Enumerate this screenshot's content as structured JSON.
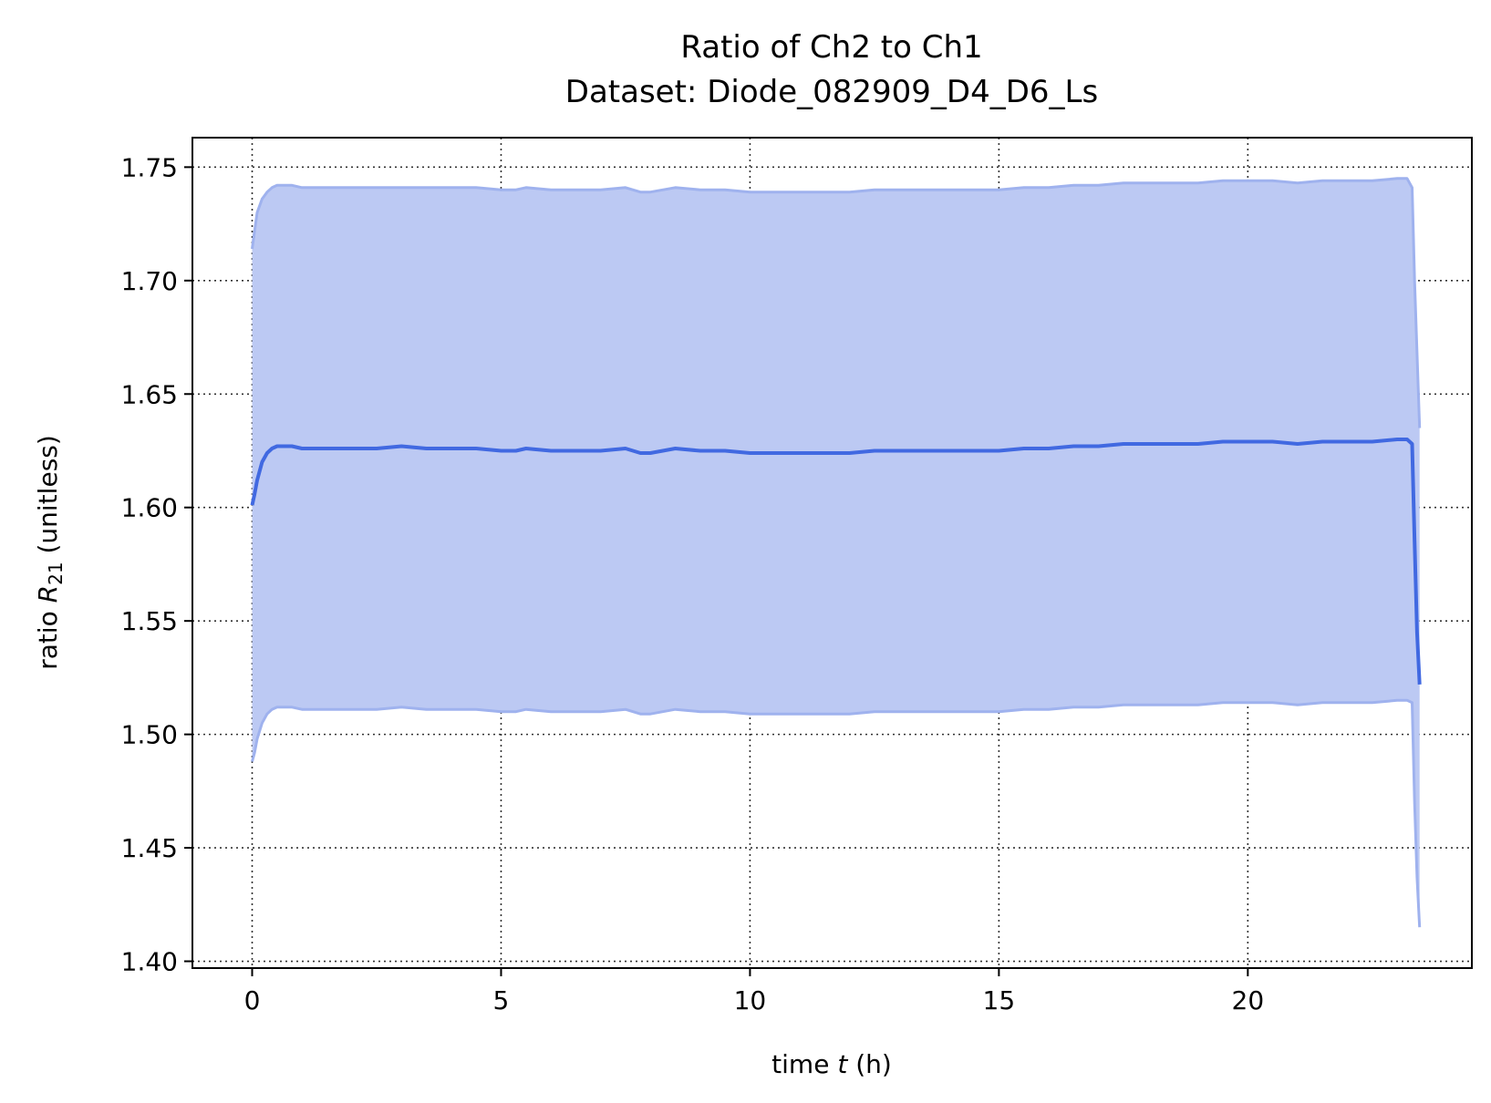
{
  "chart_data": {
    "type": "line",
    "title": "Ratio of Ch2 to Ch1",
    "subtitle": "Dataset: Diode_082909_D4_D6_Ls",
    "xlabel": {
      "pre": "time ",
      "var": "t",
      "post": " (h)"
    },
    "ylabel": {
      "pre": "ratio ",
      "var": "R",
      "sub": "21",
      "post": " (unitless)"
    },
    "xlim": [
      -1.2,
      24.5
    ],
    "ylim": [
      1.397,
      1.763
    ],
    "xticks": [
      0,
      5,
      10,
      15,
      20
    ],
    "xtick_labels": [
      "0",
      "5",
      "10",
      "15",
      "20"
    ],
    "yticks": [
      1.4,
      1.45,
      1.5,
      1.55,
      1.6,
      1.65,
      1.7,
      1.75
    ],
    "ytick_labels": [
      "1.40",
      "1.45",
      "1.50",
      "1.55",
      "1.60",
      "1.65",
      "1.70",
      "1.75"
    ],
    "grid": true,
    "colors": {
      "line": "#4169e1",
      "band": "#bcc9f3",
      "band_edge": "#9fb2ee",
      "grid": "#333333"
    },
    "series": [
      {
        "role": "mean",
        "x": [
          0,
          0.05,
          0.1,
          0.2,
          0.3,
          0.4,
          0.5,
          0.6,
          0.8,
          1.0,
          1.5,
          2.0,
          2.5,
          3.0,
          3.5,
          4.0,
          4.5,
          5.0,
          5.3,
          5.5,
          6.0,
          6.5,
          7.0,
          7.5,
          7.8,
          8.0,
          8.5,
          9.0,
          9.5,
          10.0,
          10.5,
          11.0,
          11.5,
          12.0,
          12.5,
          13.0,
          13.5,
          14.0,
          14.5,
          15.0,
          15.5,
          16.0,
          16.5,
          17.0,
          17.5,
          18.0,
          18.5,
          19.0,
          19.5,
          20.0,
          20.5,
          21.0,
          21.5,
          22.0,
          22.5,
          23.0,
          23.2,
          23.3,
          23.35,
          23.4,
          23.45
        ],
        "y": [
          1.601,
          1.606,
          1.612,
          1.62,
          1.624,
          1.626,
          1.627,
          1.627,
          1.627,
          1.626,
          1.626,
          1.626,
          1.626,
          1.627,
          1.626,
          1.626,
          1.626,
          1.625,
          1.625,
          1.626,
          1.625,
          1.625,
          1.625,
          1.626,
          1.624,
          1.624,
          1.626,
          1.625,
          1.625,
          1.624,
          1.624,
          1.624,
          1.624,
          1.624,
          1.625,
          1.625,
          1.625,
          1.625,
          1.625,
          1.625,
          1.626,
          1.626,
          1.627,
          1.627,
          1.628,
          1.628,
          1.628,
          1.628,
          1.629,
          1.629,
          1.629,
          1.628,
          1.629,
          1.629,
          1.629,
          1.63,
          1.63,
          1.628,
          1.585,
          1.545,
          1.522
        ]
      },
      {
        "role": "upper",
        "x": [
          0,
          0.05,
          0.1,
          0.2,
          0.3,
          0.4,
          0.5,
          0.6,
          0.8,
          1.0,
          1.5,
          2.0,
          2.5,
          3.0,
          3.5,
          4.0,
          4.5,
          5.0,
          5.3,
          5.5,
          6.0,
          6.5,
          7.0,
          7.5,
          7.8,
          8.0,
          8.5,
          9.0,
          9.5,
          10.0,
          10.5,
          11.0,
          11.5,
          12.0,
          12.5,
          13.0,
          13.5,
          14.0,
          14.5,
          15.0,
          15.5,
          16.0,
          16.5,
          17.0,
          17.5,
          18.0,
          18.5,
          19.0,
          19.5,
          20.0,
          20.5,
          21.0,
          21.5,
          22.0,
          22.5,
          23.0,
          23.2,
          23.3,
          23.35,
          23.4,
          23.45
        ],
        "y": [
          1.714,
          1.722,
          1.73,
          1.736,
          1.739,
          1.741,
          1.742,
          1.742,
          1.742,
          1.741,
          1.741,
          1.741,
          1.741,
          1.741,
          1.741,
          1.741,
          1.741,
          1.74,
          1.74,
          1.741,
          1.74,
          1.74,
          1.74,
          1.741,
          1.739,
          1.739,
          1.741,
          1.74,
          1.74,
          1.739,
          1.739,
          1.739,
          1.739,
          1.739,
          1.74,
          1.74,
          1.74,
          1.74,
          1.74,
          1.74,
          1.741,
          1.741,
          1.742,
          1.742,
          1.743,
          1.743,
          1.743,
          1.743,
          1.744,
          1.744,
          1.744,
          1.743,
          1.744,
          1.744,
          1.744,
          1.745,
          1.745,
          1.741,
          1.7,
          1.668,
          1.635
        ]
      },
      {
        "role": "lower",
        "x": [
          0,
          0.05,
          0.1,
          0.2,
          0.3,
          0.4,
          0.5,
          0.6,
          0.8,
          1.0,
          1.5,
          2.0,
          2.5,
          3.0,
          3.5,
          4.0,
          4.5,
          5.0,
          5.3,
          5.5,
          6.0,
          6.5,
          7.0,
          7.5,
          7.8,
          8.0,
          8.5,
          9.0,
          9.5,
          10.0,
          10.5,
          11.0,
          11.5,
          12.0,
          12.5,
          13.0,
          13.5,
          14.0,
          14.5,
          15.0,
          15.5,
          16.0,
          16.5,
          17.0,
          17.5,
          18.0,
          18.5,
          19.0,
          19.5,
          20.0,
          20.5,
          21.0,
          21.5,
          22.0,
          22.5,
          23.0,
          23.2,
          23.3,
          23.35,
          23.4,
          23.45
        ],
        "y": [
          1.488,
          1.492,
          1.498,
          1.505,
          1.509,
          1.511,
          1.512,
          1.512,
          1.512,
          1.511,
          1.511,
          1.511,
          1.511,
          1.512,
          1.511,
          1.511,
          1.511,
          1.51,
          1.51,
          1.511,
          1.51,
          1.51,
          1.51,
          1.511,
          1.509,
          1.509,
          1.511,
          1.51,
          1.51,
          1.509,
          1.509,
          1.509,
          1.509,
          1.509,
          1.51,
          1.51,
          1.51,
          1.51,
          1.51,
          1.51,
          1.511,
          1.511,
          1.512,
          1.512,
          1.513,
          1.513,
          1.513,
          1.513,
          1.514,
          1.514,
          1.514,
          1.513,
          1.514,
          1.514,
          1.514,
          1.515,
          1.515,
          1.514,
          1.47,
          1.437,
          1.415
        ]
      }
    ]
  }
}
